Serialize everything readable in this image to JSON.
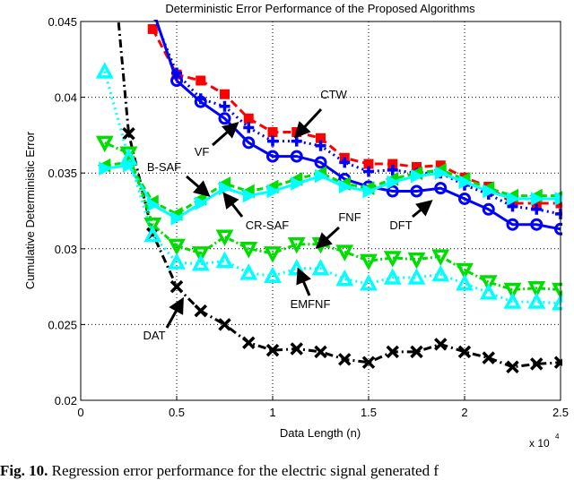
{
  "chart_data": {
    "type": "line",
    "title": "Deterministic Error Performance of the Proposed Algorithms",
    "xlabel": "Data Length (n)",
    "ylabel": "Cumulative Deterministic Error",
    "x_multiplier": "x 10",
    "x_multiplier_exp": "4",
    "xlim": [
      0,
      2.5
    ],
    "ylim": [
      0.02,
      0.045
    ],
    "xticks": [
      "0",
      "0.5",
      "1",
      "1.5",
      "2",
      "2.5"
    ],
    "yticks": [
      "0.02",
      "0.025",
      "0.03",
      "0.035",
      "0.04",
      "0.045"
    ],
    "grid": true,
    "x": [
      0.125,
      0.25,
      0.375,
      0.5,
      0.625,
      0.75,
      0.875,
      1.0,
      1.125,
      1.25,
      1.375,
      1.5,
      1.625,
      1.75,
      1.875,
      2.0,
      2.125,
      2.25,
      2.375,
      2.5
    ],
    "series": [
      {
        "name": "DAT",
        "color": "#000000",
        "marker": "x",
        "dash": "9,4,2,4",
        "values": [
          0.055,
          0.0376,
          0.031,
          0.0275,
          0.0259,
          0.025,
          0.0238,
          0.0233,
          0.0234,
          0.0232,
          0.0227,
          0.0225,
          0.0232,
          0.0232,
          0.0237,
          0.0232,
          0.0228,
          0.0222,
          0.0224,
          0.0225
        ]
      },
      {
        "name": "CTW",
        "color": "#ff0000",
        "marker": "square",
        "dash": "9,5",
        "values": [
          null,
          null,
          0.0445,
          0.0415,
          0.0411,
          0.0402,
          0.0386,
          0.0377,
          0.0377,
          0.0373,
          0.036,
          0.0356,
          0.0356,
          0.0354,
          0.0355,
          0.0347,
          0.0341,
          0.033,
          0.033,
          0.033
        ]
      },
      {
        "name": "VF",
        "color": "#0000ff",
        "marker": "plus",
        "dash": "2,4",
        "values": [
          null,
          null,
          0.0455,
          0.0416,
          0.0399,
          0.0394,
          0.038,
          0.0371,
          0.0371,
          0.0368,
          0.0357,
          0.0351,
          0.0352,
          0.035,
          0.035,
          0.0342,
          0.0336,
          0.0328,
          0.0326,
          0.0323
        ]
      },
      {
        "name": "DFT",
        "color": "#0000ff",
        "marker": "circle",
        "dash": "",
        "values": [
          null,
          null,
          0.0458,
          0.0411,
          0.0397,
          0.0386,
          0.037,
          0.0361,
          0.0361,
          0.0357,
          0.0346,
          0.0341,
          0.0338,
          0.0338,
          0.034,
          0.0333,
          0.0326,
          0.0316,
          0.0316,
          0.0313
        ]
      },
      {
        "name": "B-SAF",
        "color": "#00dd00",
        "marker": "triangle-left",
        "dash": "7,4",
        "values": [
          0.0355,
          0.0357,
          0.0331,
          0.0323,
          0.0333,
          0.0343,
          0.0338,
          0.0341,
          0.0346,
          0.035,
          0.0343,
          0.034,
          0.0346,
          0.035,
          0.0352,
          0.0346,
          0.034,
          0.0335,
          0.0335,
          0.0335
        ]
      },
      {
        "name": "CR-SAF",
        "color": "#00ffff",
        "marker": "triangle-right",
        "dash": "",
        "values": [
          0.0353,
          0.0355,
          0.0329,
          0.032,
          0.033,
          0.034,
          0.0335,
          0.0338,
          0.0343,
          0.0348,
          0.0341,
          0.0338,
          0.0344,
          0.0348,
          0.035,
          0.0344,
          0.0338,
          0.0333,
          0.0333,
          0.0333
        ]
      },
      {
        "name": "FNF",
        "color": "#00dd00",
        "marker": "triangle-down",
        "dash": "2,3,6,3",
        "values": [
          0.037,
          0.0363,
          0.0316,
          0.0302,
          0.0297,
          0.0308,
          0.03,
          0.0297,
          0.0303,
          0.0303,
          0.0298,
          0.0292,
          0.0294,
          0.0293,
          0.0295,
          0.0286,
          0.0278,
          0.0273,
          0.0274,
          0.0273
        ]
      },
      {
        "name": "EMFNF",
        "color": "#00ffff",
        "marker": "triangle-up",
        "dash": "2,4",
        "values": [
          0.0417,
          0.036,
          0.0309,
          0.0291,
          0.029,
          0.0292,
          0.0284,
          0.0282,
          0.0287,
          0.0287,
          0.028,
          0.0277,
          0.0281,
          0.0281,
          0.0283,
          0.0277,
          0.0271,
          0.0265,
          0.0265,
          0.0264
        ]
      }
    ],
    "annotations": [
      "CTW",
      "VF",
      "B-SAF",
      "CR-SAF",
      "FNF",
      "DFT",
      "EMFNF",
      "DAT"
    ]
  },
  "caption": {
    "label": "Fig. 10.",
    "text": "Regression error performance for the electric signal generated f"
  }
}
